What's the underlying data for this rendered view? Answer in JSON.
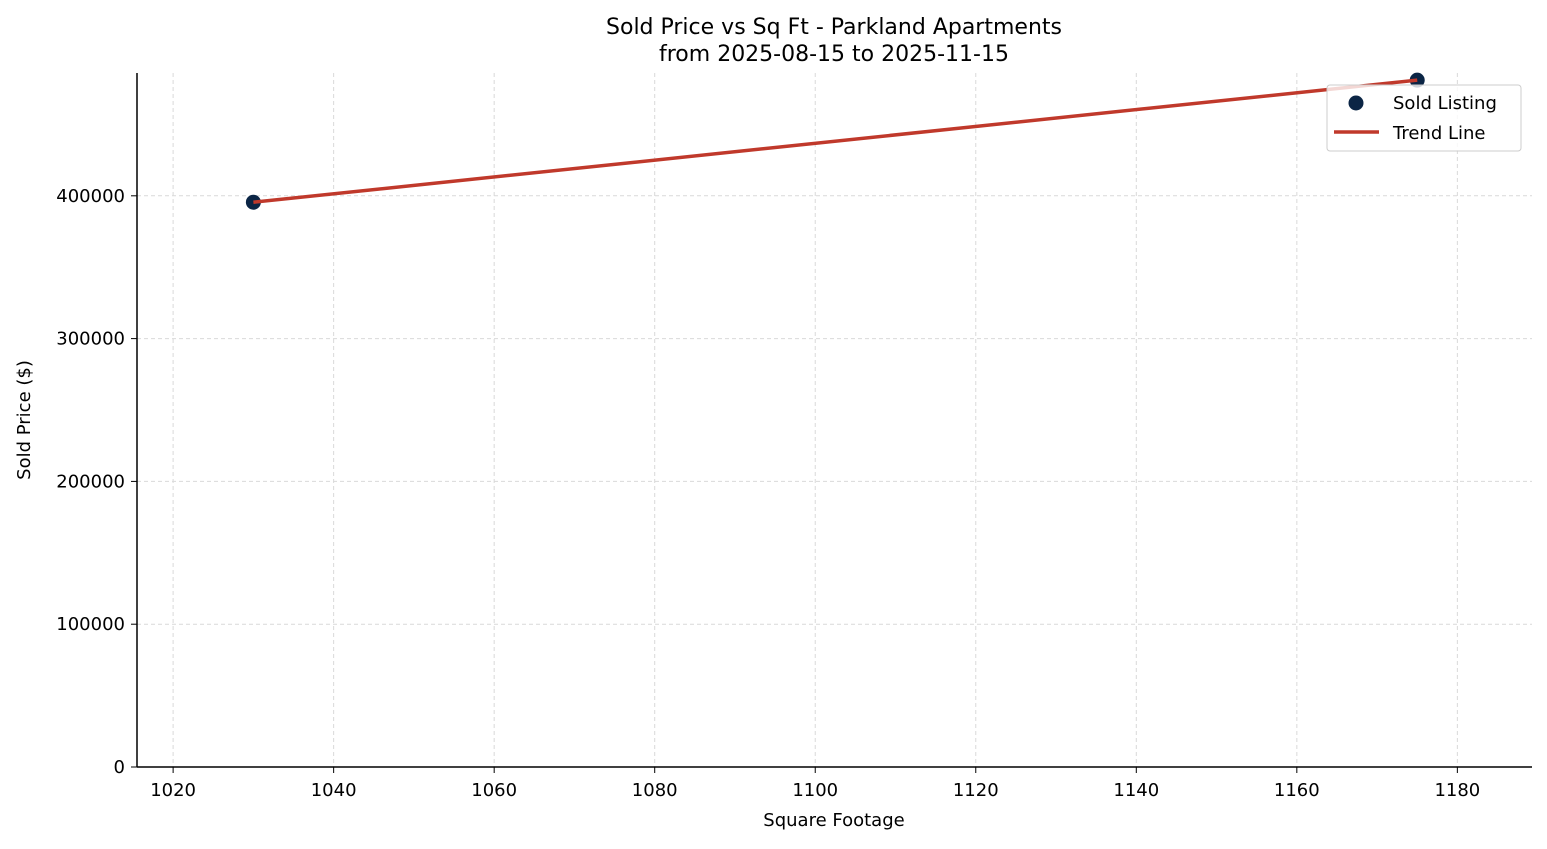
{
  "chart_data": {
    "type": "scatter",
    "title": "Sold Price vs Sq Ft - Parkland Apartments",
    "subtitle": "from 2025-08-15 to 2025-11-15",
    "xlabel": "Square Footage",
    "ylabel": "Sold Price ($)",
    "xlim": [
      1015.5,
      1189.3
    ],
    "ylim": [
      0,
      486000
    ],
    "xticks": [
      "1020",
      "1040",
      "1060",
      "1080",
      "1100",
      "1120",
      "1140",
      "1160",
      "1180"
    ],
    "yticks": [
      "0",
      "100000",
      "200000",
      "300000",
      "400000"
    ],
    "grid": true,
    "legend_position": "top-right",
    "series": [
      {
        "name": "Sold Listing",
        "kind": "scatter",
        "color": "#0b2545",
        "points": [
          {
            "x": 1030,
            "y": 395500
          },
          {
            "x": 1175,
            "y": 481000
          }
        ]
      },
      {
        "name": "Trend Line",
        "kind": "line",
        "color": "#c0392b",
        "points": [
          {
            "x": 1030,
            "y": 395500
          },
          {
            "x": 1175,
            "y": 481000
          }
        ]
      }
    ]
  }
}
